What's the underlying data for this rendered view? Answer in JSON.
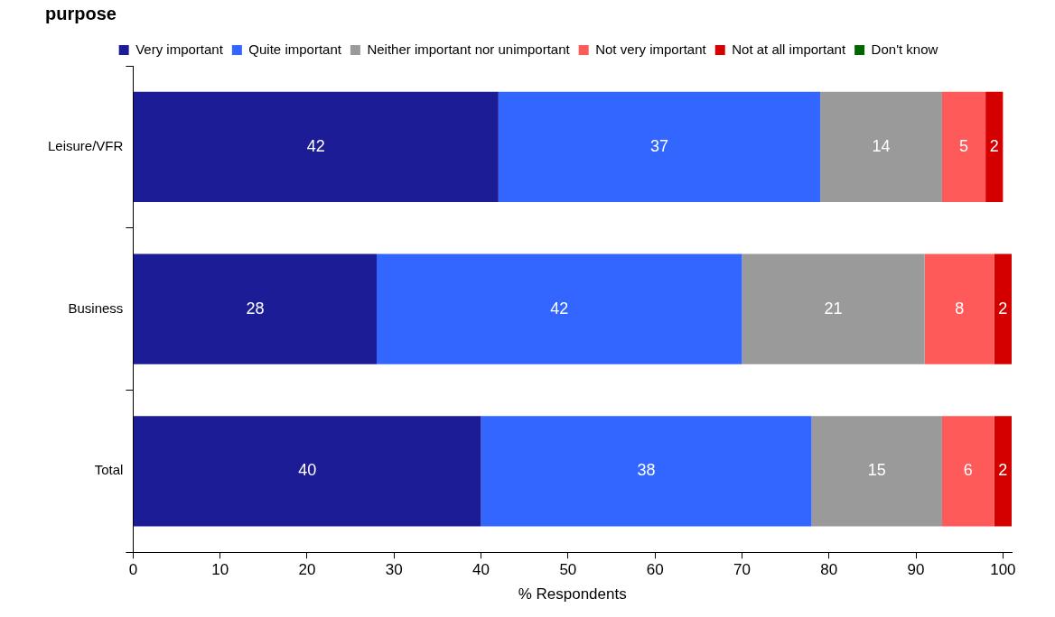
{
  "chart_data": {
    "type": "bar",
    "title": "purpose",
    "orientation": "horizontal",
    "stacked": true,
    "categories": [
      "Leisure/VFR",
      "Business",
      "Total"
    ],
    "xlabel": "% Respondents",
    "xlim": [
      0,
      101
    ],
    "xticks": [
      0,
      10,
      20,
      30,
      40,
      50,
      60,
      70,
      80,
      90,
      100
    ],
    "grid": false,
    "legend": "top",
    "data_labels": true,
    "series": [
      {
        "name": "Very important",
        "color": "#1c1c96",
        "values": [
          42,
          28,
          40
        ]
      },
      {
        "name": "Quite important",
        "color": "#3366ff",
        "values": [
          37,
          42,
          38
        ]
      },
      {
        "name": "Neither important nor unimportant",
        "color": "#9a9a9a",
        "values": [
          14,
          21,
          15
        ]
      },
      {
        "name": "Not very important",
        "color": "#ff5a5a",
        "values": [
          5,
          8,
          6
        ]
      },
      {
        "name": "Not at all important",
        "color": "#d40000",
        "values": [
          2,
          2,
          2
        ]
      },
      {
        "name": "Don't know",
        "color": "#006600",
        "values": [
          null,
          null,
          null
        ]
      }
    ]
  }
}
